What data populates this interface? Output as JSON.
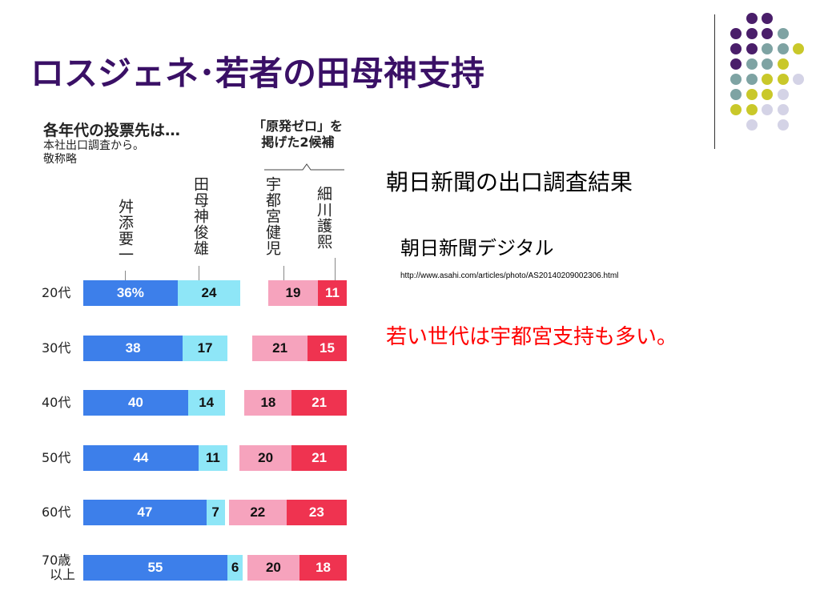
{
  "slide": {
    "title": "ロスジェネ･若者の田母神支持",
    "source_heading": "朝日新聞の出口調査結果",
    "source_name": "朝日新聞デジタル",
    "source_url": "http://www.asahi.com/articles/photo/AS20140209002306.html",
    "comment": "若い世代は宇都宮支持も多い。"
  },
  "colors": {
    "title": "#3a1066",
    "masuzoe": "#3d7fea",
    "tamogami": "#8ee6f7",
    "utsunomiya": "#f6a3bd",
    "hosokawa": "#ef3350",
    "comment": "#ff0000",
    "dot_purple": "#4a1e6a",
    "dot_teal": "#7ea3a3",
    "dot_yellow": "#c9c82a",
    "dot_lavender": "#d4d3e6"
  },
  "chart_data": {
    "type": "bar",
    "title": "各年代の投票先は…",
    "subtitle": "本社出口調査から。敬称略",
    "bracket_label": "「原発ゼロ」を掲げた2候補",
    "categories": [
      "20代",
      "30代",
      "40代",
      "50代",
      "60代",
      "70歳以上"
    ],
    "category_display": [
      "20代",
      "30代",
      "40代",
      "50代",
      "60代",
      "70歳\n以上"
    ],
    "series": [
      {
        "name": "舛添要一",
        "values": [
          36,
          38,
          40,
          44,
          47,
          55
        ],
        "labels": [
          "36%",
          "38",
          "40",
          "44",
          "47",
          "55"
        ]
      },
      {
        "name": "田母神俊雄",
        "values": [
          24,
          17,
          14,
          11,
          7,
          6
        ],
        "labels": [
          "24",
          "17",
          "14",
          "11",
          "7",
          "6"
        ]
      },
      {
        "name": "宇都宮健児",
        "values": [
          19,
          21,
          18,
          20,
          22,
          20
        ],
        "labels": [
          "19",
          "21",
          "18",
          "20",
          "22",
          "20"
        ]
      },
      {
        "name": "細川護熙",
        "values": [
          11,
          15,
          21,
          21,
          23,
          18
        ],
        "labels": [
          "11",
          "15",
          "21",
          "21",
          "23",
          "18"
        ]
      }
    ],
    "legend": "none",
    "grid": false
  }
}
